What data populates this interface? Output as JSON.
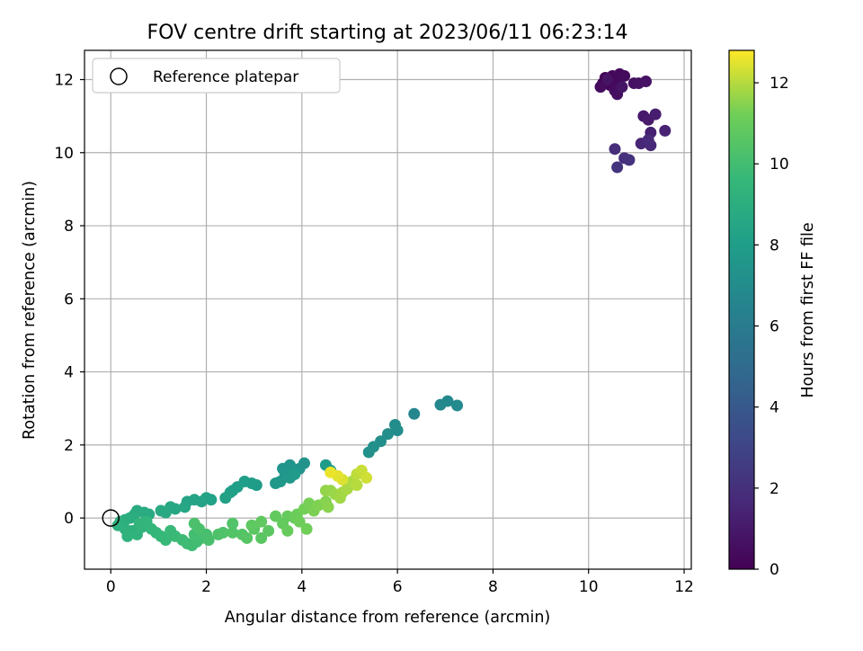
{
  "chart_data": {
    "type": "scatter",
    "title": "FOV centre drift starting at 2023/06/11 06:23:14",
    "xlabel": "Angular distance from reference (arcmin)",
    "ylabel": "Rotation from reference (arcmin)",
    "xlim": [
      -0.55,
      12.15
    ],
    "ylim": [
      -1.4,
      12.8
    ],
    "xticks": [
      0,
      2,
      4,
      6,
      8,
      10,
      12
    ],
    "yticks": [
      0,
      2,
      4,
      6,
      8,
      10,
      12
    ],
    "grid": true,
    "legend": {
      "label": "Reference platepar",
      "placement": "top-left"
    },
    "reference_point": {
      "x": 0,
      "y": 0
    },
    "colorbar": {
      "label": "Hours from first FF file",
      "colormap": "viridis",
      "range": [
        0,
        12.8
      ],
      "ticks": [
        0,
        2,
        4,
        6,
        8,
        10,
        12
      ]
    },
    "points": [
      [
        10.3,
        11.9,
        0.1
      ],
      [
        10.35,
        12.05,
        0.15
      ],
      [
        10.45,
        11.85,
        0.2
      ],
      [
        10.5,
        12.1,
        0.25
      ],
      [
        10.6,
        11.95,
        0.3
      ],
      [
        10.65,
        12.15,
        0.35
      ],
      [
        10.75,
        12.1,
        0.4
      ],
      [
        10.25,
        11.8,
        0.45
      ],
      [
        10.55,
        11.7,
        0.5
      ],
      [
        10.6,
        11.6,
        0.55
      ],
      [
        10.95,
        11.9,
        0.6
      ],
      [
        11.05,
        11.9,
        0.65
      ],
      [
        11.2,
        11.95,
        0.7
      ],
      [
        10.4,
        12.0,
        0.75
      ],
      [
        10.7,
        11.8,
        0.8
      ],
      [
        11.15,
        11.0,
        1.0
      ],
      [
        11.25,
        10.9,
        1.1
      ],
      [
        11.4,
        11.05,
        1.2
      ],
      [
        11.3,
        10.55,
        1.3
      ],
      [
        11.6,
        10.6,
        1.4
      ],
      [
        11.1,
        10.25,
        1.5
      ],
      [
        11.3,
        10.2,
        1.6
      ],
      [
        11.25,
        10.35,
        1.7
      ],
      [
        10.55,
        10.1,
        1.9
      ],
      [
        10.75,
        9.85,
        2.0
      ],
      [
        10.85,
        9.8,
        2.1
      ],
      [
        10.6,
        9.6,
        2.2
      ],
      [
        6.35,
        2.85,
        6.7
      ],
      [
        6.9,
        3.1,
        6.75
      ],
      [
        7.05,
        3.2,
        6.8
      ],
      [
        7.25,
        3.08,
        6.85
      ],
      [
        5.95,
        2.55,
        7.0
      ],
      [
        6.0,
        2.4,
        7.05
      ],
      [
        5.8,
        2.3,
        7.1
      ],
      [
        5.65,
        2.1,
        7.15
      ],
      [
        5.5,
        1.95,
        7.2
      ],
      [
        5.4,
        1.8,
        7.25
      ],
      [
        4.05,
        1.5,
        7.3
      ],
      [
        3.95,
        1.35,
        7.35
      ],
      [
        3.85,
        1.3,
        7.4
      ],
      [
        3.75,
        1.45,
        7.45
      ],
      [
        3.6,
        1.35,
        7.5
      ],
      [
        3.65,
        1.2,
        7.55
      ],
      [
        3.55,
        1.0,
        7.6
      ],
      [
        3.75,
        1.1,
        7.65
      ],
      [
        3.45,
        0.95,
        7.7
      ],
      [
        3.85,
        1.2,
        7.75
      ],
      [
        4.5,
        1.45,
        7.8
      ],
      [
        4.6,
        1.3,
        7.85
      ],
      [
        3.05,
        0.9,
        7.9
      ],
      [
        2.95,
        0.95,
        7.95
      ],
      [
        2.8,
        1.0,
        8.0
      ],
      [
        2.65,
        0.85,
        8.05
      ],
      [
        2.55,
        0.75,
        8.1
      ],
      [
        2.5,
        0.7,
        8.15
      ],
      [
        2.4,
        0.55,
        8.2
      ],
      [
        2.1,
        0.5,
        8.25
      ],
      [
        2.0,
        0.55,
        8.3
      ],
      [
        1.9,
        0.45,
        8.35
      ],
      [
        1.75,
        0.5,
        8.4
      ],
      [
        1.6,
        0.45,
        8.45
      ],
      [
        1.55,
        0.3,
        8.5
      ],
      [
        1.35,
        0.25,
        8.55
      ],
      [
        1.25,
        0.3,
        8.6
      ],
      [
        1.15,
        0.15,
        8.65
      ],
      [
        1.05,
        0.2,
        8.7
      ],
      [
        0.8,
        0.1,
        8.75
      ],
      [
        0.7,
        0.15,
        8.8
      ],
      [
        0.55,
        0.2,
        8.85
      ],
      [
        0.5,
        0.1,
        8.9
      ],
      [
        0.4,
        0.0,
        8.95
      ],
      [
        0.3,
        -0.05,
        9.0
      ],
      [
        0.2,
        -0.1,
        9.05
      ],
      [
        0.15,
        -0.2,
        9.1
      ],
      [
        0.3,
        -0.3,
        9.15
      ],
      [
        0.45,
        -0.35,
        9.2
      ],
      [
        0.35,
        -0.5,
        9.25
      ],
      [
        0.55,
        -0.45,
        9.3
      ],
      [
        0.65,
        -0.25,
        9.35
      ],
      [
        0.6,
        -0.15,
        9.4
      ],
      [
        0.75,
        -0.1,
        9.45
      ],
      [
        0.85,
        -0.3,
        9.5
      ],
      [
        0.95,
        -0.4,
        9.55
      ],
      [
        1.05,
        -0.5,
        9.6
      ],
      [
        1.15,
        -0.6,
        9.65
      ],
      [
        1.25,
        -0.35,
        9.7
      ],
      [
        1.35,
        -0.5,
        9.75
      ],
      [
        1.5,
        -0.6,
        9.8
      ],
      [
        1.6,
        -0.7,
        9.85
      ],
      [
        1.7,
        -0.75,
        9.9
      ],
      [
        1.8,
        -0.65,
        9.95
      ],
      [
        1.75,
        -0.45,
        10.0
      ],
      [
        1.9,
        -0.55,
        10.05
      ],
      [
        2.0,
        -0.45,
        10.1
      ],
      [
        2.05,
        -0.6,
        10.15
      ],
      [
        1.85,
        -0.3,
        10.2
      ],
      [
        1.75,
        -0.15,
        10.25
      ],
      [
        2.25,
        -0.45,
        10.3
      ],
      [
        2.35,
        -0.4,
        10.35
      ],
      [
        2.55,
        -0.15,
        10.4
      ],
      [
        2.55,
        -0.4,
        10.45
      ],
      [
        2.75,
        -0.45,
        10.5
      ],
      [
        2.85,
        -0.55,
        10.55
      ],
      [
        3.0,
        -0.3,
        10.6
      ],
      [
        3.15,
        -0.55,
        10.65
      ],
      [
        3.3,
        -0.35,
        10.7
      ],
      [
        2.95,
        -0.2,
        10.75
      ],
      [
        3.15,
        -0.1,
        10.8
      ],
      [
        3.45,
        0.05,
        10.85
      ],
      [
        3.6,
        -0.15,
        10.9
      ],
      [
        3.7,
        0.05,
        10.95
      ],
      [
        3.7,
        -0.35,
        11.0
      ],
      [
        3.85,
        0.0,
        11.05
      ],
      [
        3.9,
        0.1,
        11.1
      ],
      [
        3.95,
        -0.1,
        11.15
      ],
      [
        4.1,
        -0.3,
        11.2
      ],
      [
        4.05,
        0.25,
        11.25
      ],
      [
        4.15,
        0.4,
        11.3
      ],
      [
        4.25,
        0.2,
        11.35
      ],
      [
        4.35,
        0.35,
        11.4
      ],
      [
        4.5,
        0.45,
        11.45
      ],
      [
        4.55,
        0.3,
        11.5
      ],
      [
        4.5,
        0.75,
        11.6
      ],
      [
        4.6,
        0.75,
        11.65
      ],
      [
        4.7,
        0.65,
        11.7
      ],
      [
        4.8,
        0.55,
        11.75
      ],
      [
        4.85,
        0.7,
        11.8
      ],
      [
        4.95,
        0.8,
        11.85
      ],
      [
        5.05,
        1.0,
        11.9
      ],
      [
        5.15,
        0.9,
        12.0
      ],
      [
        5.15,
        1.2,
        12.1
      ],
      [
        5.25,
        1.3,
        12.2
      ],
      [
        5.35,
        1.1,
        12.3
      ],
      [
        4.85,
        1.05,
        12.4
      ],
      [
        4.75,
        1.15,
        12.5
      ],
      [
        4.6,
        1.25,
        12.6
      ]
    ]
  }
}
